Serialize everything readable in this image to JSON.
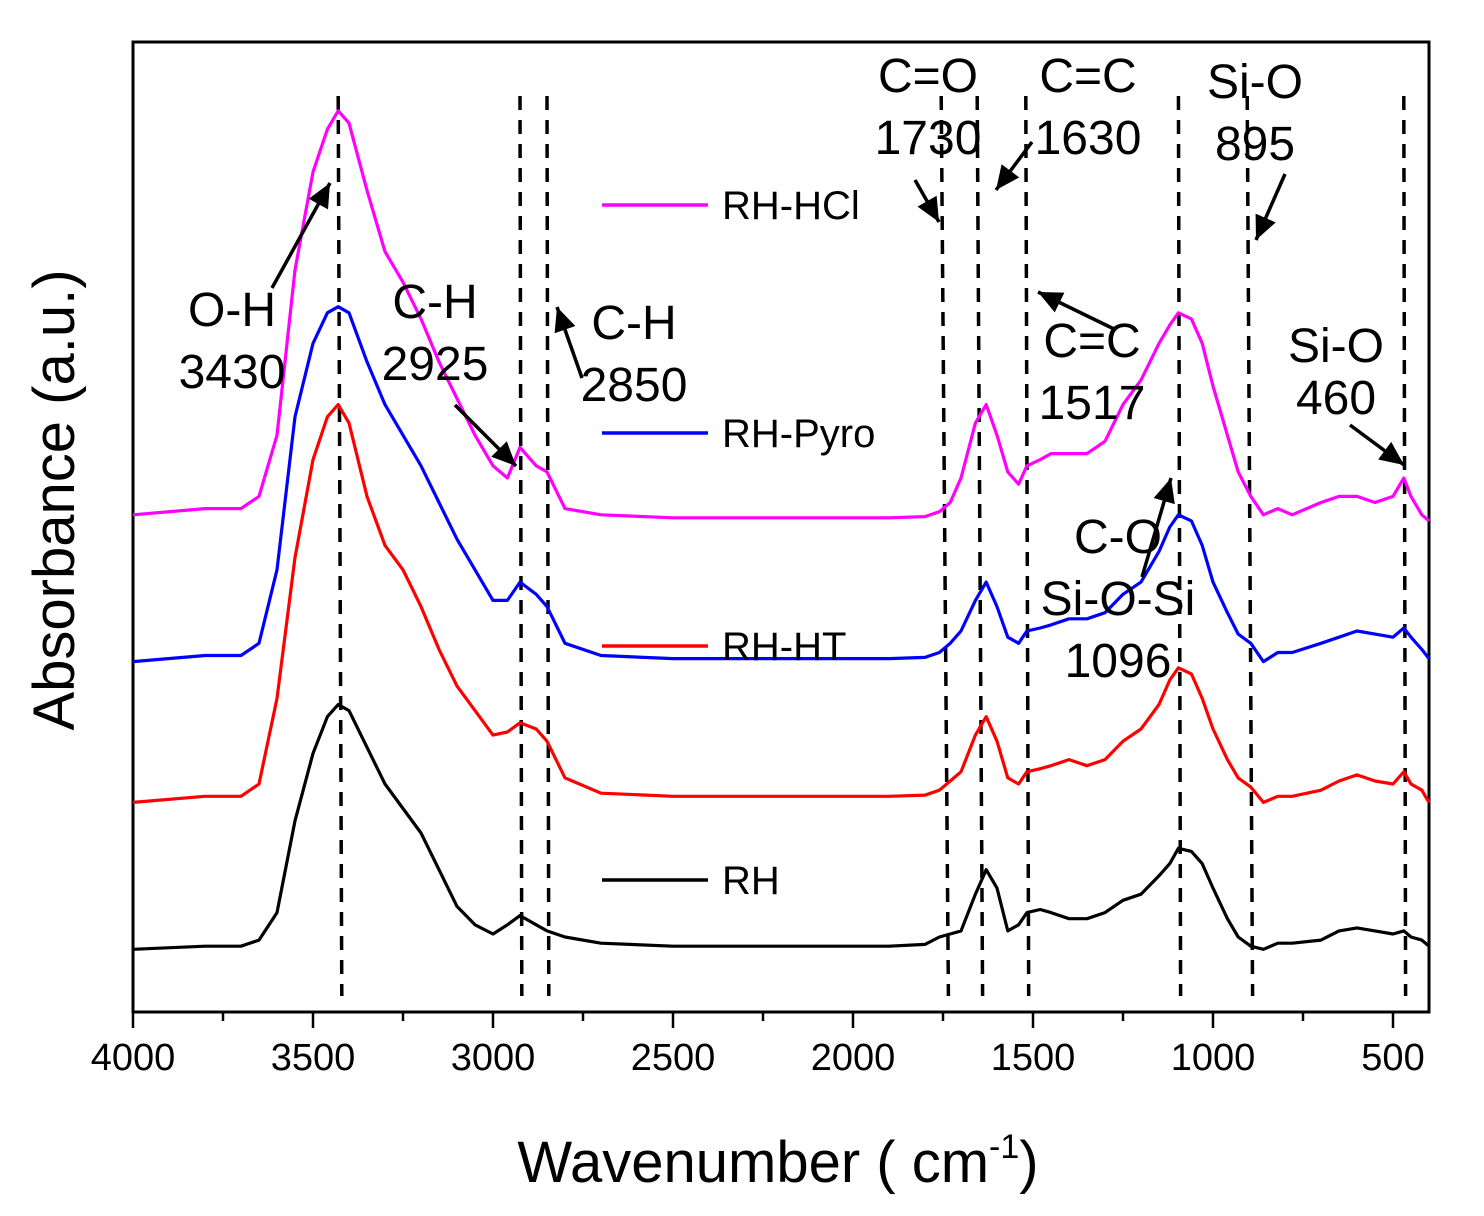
{
  "chart_data": {
    "type": "line",
    "xlabel": "Wavenumber ( cm",
    "xlabel_sup": "-1",
    "xlabel_end": ")",
    "ylabel": "Absorbance (a.u.)",
    "xlim": [
      4000,
      400
    ],
    "x_reversed": true,
    "y_tick_labels": false,
    "x_ticks": [
      4000,
      3500,
      3000,
      2500,
      2000,
      1500,
      1000,
      500
    ],
    "x_tick_labels": [
      "4000",
      "3500",
      "3000",
      "2500",
      "2000",
      "1500",
      "1000",
      "500"
    ],
    "series": [
      {
        "name": "RH-HCl",
        "color": "#ff00ff",
        "baseline": 0.0,
        "points": [
          [
            4000,
            0.77
          ],
          [
            3800,
            0.78
          ],
          [
            3700,
            0.78
          ],
          [
            3650,
            0.8
          ],
          [
            3600,
            0.9
          ],
          [
            3550,
            1.17
          ],
          [
            3500,
            1.33
          ],
          [
            3460,
            1.4
          ],
          [
            3430,
            1.43
          ],
          [
            3400,
            1.41
          ],
          [
            3350,
            1.3
          ],
          [
            3300,
            1.2
          ],
          [
            3250,
            1.15
          ],
          [
            3200,
            1.09
          ],
          [
            3150,
            1.02
          ],
          [
            3100,
            0.96
          ],
          [
            3050,
            0.9
          ],
          [
            3000,
            0.85
          ],
          [
            2960,
            0.83
          ],
          [
            2925,
            0.88
          ],
          [
            2880,
            0.85
          ],
          [
            2850,
            0.84
          ],
          [
            2800,
            0.78
          ],
          [
            2700,
            0.77
          ],
          [
            2500,
            0.765
          ],
          [
            2300,
            0.765
          ],
          [
            2100,
            0.765
          ],
          [
            1900,
            0.765
          ],
          [
            1800,
            0.767
          ],
          [
            1760,
            0.775
          ],
          [
            1730,
            0.79
          ],
          [
            1700,
            0.83
          ],
          [
            1660,
            0.92
          ],
          [
            1630,
            0.95
          ],
          [
            1600,
            0.9
          ],
          [
            1570,
            0.84
          ],
          [
            1540,
            0.82
          ],
          [
            1517,
            0.85
          ],
          [
            1480,
            0.86
          ],
          [
            1450,
            0.87
          ],
          [
            1400,
            0.87
          ],
          [
            1350,
            0.87
          ],
          [
            1300,
            0.89
          ],
          [
            1250,
            0.95
          ],
          [
            1200,
            0.99
          ],
          [
            1150,
            1.05
          ],
          [
            1120,
            1.08
          ],
          [
            1096,
            1.1
          ],
          [
            1060,
            1.09
          ],
          [
            1030,
            1.05
          ],
          [
            1000,
            0.98
          ],
          [
            960,
            0.9
          ],
          [
            930,
            0.84
          ],
          [
            895,
            0.8
          ],
          [
            860,
            0.77
          ],
          [
            820,
            0.78
          ],
          [
            780,
            0.77
          ],
          [
            700,
            0.79
          ],
          [
            650,
            0.8
          ],
          [
            600,
            0.8
          ],
          [
            550,
            0.79
          ],
          [
            500,
            0.8
          ],
          [
            470,
            0.83
          ],
          [
            450,
            0.8
          ],
          [
            420,
            0.77
          ],
          [
            400,
            0.76
          ]
        ]
      },
      {
        "name": "RH-Pyro",
        "color": "#0000ff",
        "baseline": 0.0,
        "points": [
          [
            4000,
            0.53
          ],
          [
            3800,
            0.54
          ],
          [
            3700,
            0.54
          ],
          [
            3650,
            0.56
          ],
          [
            3600,
            0.68
          ],
          [
            3550,
            0.93
          ],
          [
            3500,
            1.05
          ],
          [
            3460,
            1.1
          ],
          [
            3430,
            1.11
          ],
          [
            3400,
            1.1
          ],
          [
            3350,
            1.02
          ],
          [
            3300,
            0.95
          ],
          [
            3250,
            0.9
          ],
          [
            3200,
            0.85
          ],
          [
            3150,
            0.79
          ],
          [
            3100,
            0.73
          ],
          [
            3050,
            0.68
          ],
          [
            3000,
            0.63
          ],
          [
            2960,
            0.63
          ],
          [
            2925,
            0.66
          ],
          [
            2880,
            0.64
          ],
          [
            2850,
            0.62
          ],
          [
            2800,
            0.56
          ],
          [
            2700,
            0.54
          ],
          [
            2500,
            0.535
          ],
          [
            2300,
            0.535
          ],
          [
            2100,
            0.535
          ],
          [
            1900,
            0.535
          ],
          [
            1800,
            0.537
          ],
          [
            1760,
            0.545
          ],
          [
            1730,
            0.56
          ],
          [
            1700,
            0.58
          ],
          [
            1660,
            0.63
          ],
          [
            1630,
            0.66
          ],
          [
            1600,
            0.62
          ],
          [
            1570,
            0.57
          ],
          [
            1540,
            0.56
          ],
          [
            1517,
            0.58
          ],
          [
            1480,
            0.585
          ],
          [
            1450,
            0.59
          ],
          [
            1400,
            0.6
          ],
          [
            1350,
            0.6
          ],
          [
            1300,
            0.61
          ],
          [
            1250,
            0.64
          ],
          [
            1200,
            0.66
          ],
          [
            1150,
            0.71
          ],
          [
            1120,
            0.75
          ],
          [
            1096,
            0.77
          ],
          [
            1060,
            0.76
          ],
          [
            1030,
            0.72
          ],
          [
            1000,
            0.66
          ],
          [
            960,
            0.61
          ],
          [
            930,
            0.575
          ],
          [
            895,
            0.56
          ],
          [
            860,
            0.53
          ],
          [
            820,
            0.545
          ],
          [
            780,
            0.545
          ],
          [
            700,
            0.56
          ],
          [
            650,
            0.57
          ],
          [
            600,
            0.58
          ],
          [
            550,
            0.575
          ],
          [
            500,
            0.57
          ],
          [
            470,
            0.585
          ],
          [
            450,
            0.57
          ],
          [
            420,
            0.55
          ],
          [
            400,
            0.535
          ]
        ]
      },
      {
        "name": "RH-HT",
        "color": "#ff0000",
        "baseline": 0.0,
        "points": [
          [
            4000,
            0.3
          ],
          [
            3800,
            0.31
          ],
          [
            3700,
            0.31
          ],
          [
            3650,
            0.33
          ],
          [
            3600,
            0.47
          ],
          [
            3550,
            0.7
          ],
          [
            3500,
            0.86
          ],
          [
            3460,
            0.93
          ],
          [
            3430,
            0.95
          ],
          [
            3400,
            0.92
          ],
          [
            3350,
            0.8
          ],
          [
            3300,
            0.72
          ],
          [
            3250,
            0.68
          ],
          [
            3200,
            0.62
          ],
          [
            3150,
            0.55
          ],
          [
            3100,
            0.49
          ],
          [
            3050,
            0.45
          ],
          [
            3000,
            0.41
          ],
          [
            2960,
            0.415
          ],
          [
            2925,
            0.43
          ],
          [
            2880,
            0.42
          ],
          [
            2850,
            0.4
          ],
          [
            2800,
            0.34
          ],
          [
            2700,
            0.315
          ],
          [
            2500,
            0.31
          ],
          [
            2300,
            0.31
          ],
          [
            2100,
            0.31
          ],
          [
            1900,
            0.31
          ],
          [
            1800,
            0.312
          ],
          [
            1760,
            0.32
          ],
          [
            1730,
            0.335
          ],
          [
            1700,
            0.35
          ],
          [
            1660,
            0.41
          ],
          [
            1630,
            0.44
          ],
          [
            1600,
            0.4
          ],
          [
            1570,
            0.34
          ],
          [
            1540,
            0.33
          ],
          [
            1517,
            0.35
          ],
          [
            1480,
            0.355
          ],
          [
            1450,
            0.36
          ],
          [
            1400,
            0.37
          ],
          [
            1350,
            0.36
          ],
          [
            1300,
            0.37
          ],
          [
            1250,
            0.4
          ],
          [
            1200,
            0.42
          ],
          [
            1150,
            0.46
          ],
          [
            1120,
            0.5
          ],
          [
            1096,
            0.52
          ],
          [
            1060,
            0.51
          ],
          [
            1030,
            0.47
          ],
          [
            1000,
            0.42
          ],
          [
            960,
            0.37
          ],
          [
            930,
            0.34
          ],
          [
            895,
            0.325
          ],
          [
            860,
            0.3
          ],
          [
            820,
            0.31
          ],
          [
            780,
            0.31
          ],
          [
            700,
            0.32
          ],
          [
            650,
            0.335
          ],
          [
            600,
            0.345
          ],
          [
            550,
            0.335
          ],
          [
            500,
            0.33
          ],
          [
            470,
            0.35
          ],
          [
            450,
            0.33
          ],
          [
            420,
            0.32
          ],
          [
            400,
            0.3
          ]
        ]
      },
      {
        "name": "RH",
        "color": "#000000",
        "baseline": 0.0,
        "points": [
          [
            4000,
            0.06
          ],
          [
            3800,
            0.065
          ],
          [
            3700,
            0.065
          ],
          [
            3650,
            0.075
          ],
          [
            3600,
            0.12
          ],
          [
            3550,
            0.27
          ],
          [
            3500,
            0.38
          ],
          [
            3460,
            0.44
          ],
          [
            3430,
            0.46
          ],
          [
            3400,
            0.45
          ],
          [
            3350,
            0.39
          ],
          [
            3300,
            0.33
          ],
          [
            3250,
            0.29
          ],
          [
            3200,
            0.25
          ],
          [
            3150,
            0.19
          ],
          [
            3100,
            0.13
          ],
          [
            3050,
            0.1
          ],
          [
            3000,
            0.085
          ],
          [
            2960,
            0.1
          ],
          [
            2925,
            0.115
          ],
          [
            2880,
            0.1
          ],
          [
            2850,
            0.09
          ],
          [
            2800,
            0.08
          ],
          [
            2700,
            0.07
          ],
          [
            2500,
            0.065
          ],
          [
            2300,
            0.065
          ],
          [
            2100,
            0.065
          ],
          [
            1900,
            0.065
          ],
          [
            1800,
            0.068
          ],
          [
            1760,
            0.08
          ],
          [
            1730,
            0.085
          ],
          [
            1700,
            0.09
          ],
          [
            1660,
            0.15
          ],
          [
            1630,
            0.19
          ],
          [
            1600,
            0.16
          ],
          [
            1570,
            0.09
          ],
          [
            1540,
            0.1
          ],
          [
            1517,
            0.12
          ],
          [
            1480,
            0.125
          ],
          [
            1450,
            0.12
          ],
          [
            1400,
            0.11
          ],
          [
            1350,
            0.11
          ],
          [
            1300,
            0.12
          ],
          [
            1250,
            0.14
          ],
          [
            1200,
            0.15
          ],
          [
            1150,
            0.18
          ],
          [
            1120,
            0.2
          ],
          [
            1096,
            0.225
          ],
          [
            1060,
            0.22
          ],
          [
            1030,
            0.2
          ],
          [
            1000,
            0.16
          ],
          [
            960,
            0.11
          ],
          [
            930,
            0.08
          ],
          [
            895,
            0.065
          ],
          [
            860,
            0.06
          ],
          [
            820,
            0.07
          ],
          [
            780,
            0.07
          ],
          [
            700,
            0.075
          ],
          [
            650,
            0.09
          ],
          [
            600,
            0.095
          ],
          [
            550,
            0.09
          ],
          [
            500,
            0.085
          ],
          [
            470,
            0.09
          ],
          [
            450,
            0.08
          ],
          [
            420,
            0.075
          ],
          [
            400,
            0.065
          ]
        ]
      }
    ],
    "legend": [
      {
        "label": "RH-HCl",
        "color": "#ff00ff"
      },
      {
        "label": "RH-Pyro",
        "color": "#0000ff"
      },
      {
        "label": "RH-HT",
        "color": "#ff0000"
      },
      {
        "label": "RH",
        "color": "#000000"
      }
    ],
    "guide_lines": [
      {
        "top": 3430,
        "bottom": 3420
      },
      {
        "top": 2925,
        "bottom": 2920
      },
      {
        "top": 2850,
        "bottom": 2845
      },
      {
        "top": 1755,
        "bottom": 1735
      },
      {
        "top": 1655,
        "bottom": 1640
      },
      {
        "top": 1520,
        "bottom": 1512
      },
      {
        "top": 1096,
        "bottom": 1090
      },
      {
        "top": 905,
        "bottom": 890
      },
      {
        "top": 470,
        "bottom": 465
      }
    ],
    "annotations": [
      {
        "id": "oh",
        "lines": [
          "O-H",
          "3430"
        ]
      },
      {
        "id": "ch2925",
        "lines": [
          "C-H",
          "2925"
        ]
      },
      {
        "id": "ch2850",
        "lines": [
          "C-H",
          "2850"
        ]
      },
      {
        "id": "co1730",
        "lines": [
          "C=O",
          "1730"
        ]
      },
      {
        "id": "cc1630",
        "lines": [
          "C=C",
          "1630"
        ]
      },
      {
        "id": "sio895",
        "lines": [
          "Si-O",
          "895"
        ]
      },
      {
        "id": "cc1517",
        "lines": [
          "C=C",
          "1517"
        ]
      },
      {
        "id": "sio460",
        "lines": [
          "Si-O",
          "460"
        ]
      },
      {
        "id": "sios1096",
        "lines": [
          "C-O",
          "Si-O-Si",
          "1096"
        ]
      }
    ]
  }
}
